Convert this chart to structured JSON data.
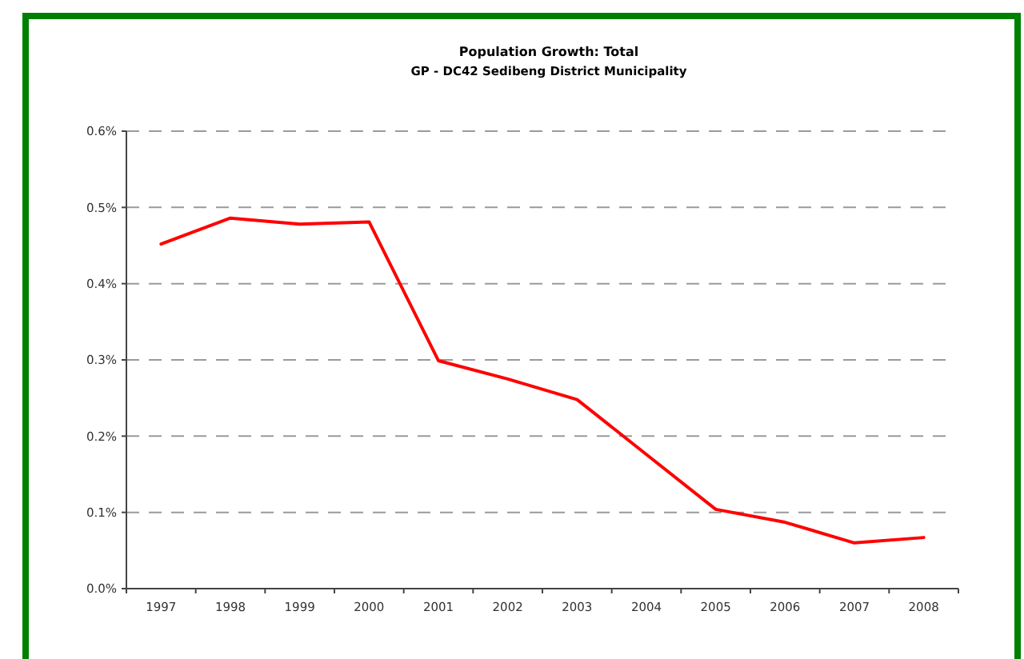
{
  "chart_data": {
    "type": "line",
    "title": "Population Growth: Total",
    "subtitle": "GP - DC42 Sedibeng District Municipality",
    "categories": [
      "1997",
      "1998",
      "1999",
      "2000",
      "2001",
      "2002",
      "2003",
      "2004",
      "2005",
      "2006",
      "2007",
      "2008"
    ],
    "series": [
      {
        "color": "#ff0000",
        "values": [
          0.452,
          0.486,
          0.478,
          0.481,
          0.299,
          0.275,
          0.248,
          0.176,
          0.104,
          0.087,
          0.06,
          0.067
        ]
      }
    ],
    "ylim": [
      0,
      0.6
    ],
    "yticks": [
      {
        "value": 0,
        "label": "0.0%"
      },
      {
        "value": 0.1,
        "label": "0.1%"
      },
      {
        "value": 0.2,
        "label": "0.2%"
      },
      {
        "value": 0.3,
        "label": "0.3%"
      },
      {
        "value": 0.4,
        "label": "0.4%"
      },
      {
        "value": 0.5,
        "label": "0.5%"
      },
      {
        "value": 0.6,
        "label": "0.6%"
      }
    ],
    "grid": "y",
    "marker": "none",
    "line_style": "solid"
  }
}
